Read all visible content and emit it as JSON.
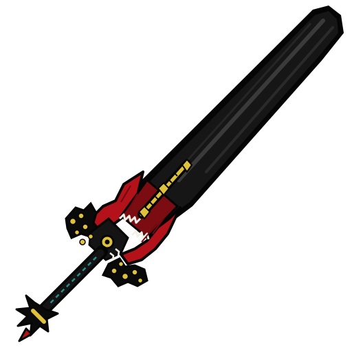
{
  "item": {
    "icon": "greatsword-icon",
    "palette": {
      "blade": "#141414",
      "blade_highlight": "#3a3a3a",
      "outline": "#050505",
      "cloth": "#b3121a",
      "cloth_dark": "#6e0a10",
      "gold": "#e0c23a",
      "teeth": "#f2f0e6",
      "grip_wrap": "#2c8c8c",
      "background": "#ffffff"
    }
  }
}
